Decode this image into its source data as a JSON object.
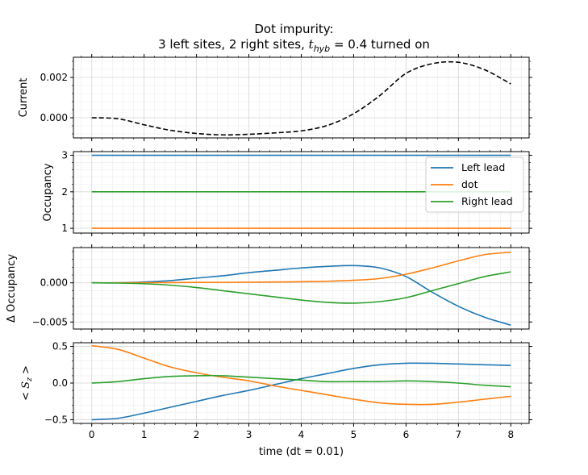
{
  "title_line1": "Dot impurity:",
  "title_line2_prefix": "3 left sites, 2 right sites, ",
  "title_line2_symbol": "t",
  "title_line2_sub": "hyb",
  "title_line2_suffix": " = 0.4 turned on",
  "xlabel": "time (dt = 0.01)",
  "chart_data": [
    {
      "type": "line",
      "panel": "current",
      "ylabel": "Current",
      "ylim": [
        -0.001,
        0.003
      ],
      "xlim": [
        -0.35,
        8.35
      ],
      "yticks": [
        0.0,
        0.002
      ],
      "ytick_labels": [
        "0.000",
        "0.002"
      ],
      "grid": true,
      "series": [
        {
          "color": "#000000",
          "dashed": true,
          "x": [
            0,
            0.5,
            1,
            1.5,
            2,
            2.5,
            3,
            3.5,
            4,
            4.5,
            5,
            5.5,
            6,
            6.5,
            7,
            7.5,
            8
          ],
          "y": [
            0.0,
            -5e-05,
            -0.00035,
            -0.00062,
            -0.00078,
            -0.00085,
            -0.00082,
            -0.00075,
            -0.00065,
            -0.00038,
            0.0002,
            0.0011,
            0.0022,
            0.00268,
            0.00275,
            0.00238,
            0.00168
          ]
        }
      ]
    },
    {
      "type": "line",
      "panel": "occupancy",
      "ylabel": "Occupancy",
      "ylim": [
        0.87,
        3.1
      ],
      "xlim": [
        -0.35,
        8.35
      ],
      "yticks": [
        1,
        2,
        3
      ],
      "ytick_labels": [
        "1",
        "2",
        "3"
      ],
      "grid": true,
      "legend_position": "upper-right",
      "series": [
        {
          "name": "Left lead",
          "color": "#1f77b4",
          "x": [
            0,
            8
          ],
          "y": [
            3,
            3
          ]
        },
        {
          "name": "dot",
          "color": "#ff7f0e",
          "x": [
            0,
            8
          ],
          "y": [
            1,
            1
          ]
        },
        {
          "name": "Right lead",
          "color": "#2ca02c",
          "x": [
            0,
            8
          ],
          "y": [
            2,
            2
          ]
        }
      ]
    },
    {
      "type": "line",
      "panel": "delta_occupancy",
      "ylabel": "Δ Occupancy",
      "ylim": [
        -0.0059,
        0.0045
      ],
      "xlim": [
        -0.35,
        8.35
      ],
      "yticks": [
        0.0,
        -0.005
      ],
      "ytick_labels": [
        "0.000",
        "−0.005"
      ],
      "grid": true,
      "series": [
        {
          "color": "#1f77b4",
          "x": [
            0,
            0.5,
            1,
            1.5,
            2,
            2.5,
            3,
            3.5,
            4,
            4.5,
            5,
            5.5,
            6,
            6.5,
            7,
            7.5,
            8
          ],
          "y": [
            0.0,
            0.0,
            0.0001,
            0.00028,
            0.0006,
            0.0009,
            0.0013,
            0.0016,
            0.0019,
            0.0021,
            0.0022,
            0.0019,
            0.0008,
            -0.0012,
            -0.003,
            -0.0044,
            -0.0054
          ]
        },
        {
          "color": "#ff7f0e",
          "x": [
            0,
            0.5,
            1,
            1.5,
            2,
            2.5,
            3,
            3.5,
            4,
            4.5,
            5,
            5.5,
            6,
            6.5,
            7,
            7.5,
            8
          ],
          "y": [
            0.0,
            0.0,
            2e-05,
            3e-05,
            5e-05,
            6e-05,
            8e-05,
            0.0001,
            0.00014,
            0.0002,
            0.00032,
            0.00055,
            0.0011,
            0.0019,
            0.0028,
            0.0036,
            0.0039
          ]
        },
        {
          "color": "#2ca02c",
          "x": [
            0,
            0.5,
            1,
            1.5,
            2,
            2.5,
            3,
            3.5,
            4,
            4.5,
            5,
            5.5,
            6,
            6.5,
            7,
            7.5,
            8
          ],
          "y": [
            0.0,
            -3e-05,
            -0.00012,
            -0.0003,
            -0.0006,
            -0.001,
            -0.0014,
            -0.0018,
            -0.0022,
            -0.0025,
            -0.0026,
            -0.0024,
            -0.0019,
            -0.001,
            -0.0001,
            0.0008,
            0.0014
          ]
        }
      ]
    },
    {
      "type": "line",
      "panel": "sz",
      "ylabel": "< S_z >",
      "ylim": [
        -0.55,
        0.55
      ],
      "xlim": [
        -0.35,
        8.35
      ],
      "yticks": [
        -0.5,
        0.0,
        0.5
      ],
      "ytick_labels": [
        "−0.5",
        "0.0",
        "0.5"
      ],
      "xticks": [
        0,
        1,
        2,
        3,
        4,
        5,
        6,
        7,
        8
      ],
      "grid": true,
      "series": [
        {
          "color": "#1f77b4",
          "x": [
            0,
            0.5,
            1,
            1.5,
            2,
            2.5,
            3,
            3.5,
            4,
            4.5,
            5,
            5.5,
            6,
            6.5,
            7,
            7.5,
            8
          ],
          "y": [
            -0.5,
            -0.48,
            -0.41,
            -0.33,
            -0.25,
            -0.17,
            -0.1,
            -0.02,
            0.06,
            0.13,
            0.2,
            0.25,
            0.27,
            0.27,
            0.26,
            0.25,
            0.24
          ]
        },
        {
          "color": "#ff7f0e",
          "x": [
            0,
            0.5,
            1,
            1.5,
            2,
            2.5,
            3,
            3.5,
            4,
            4.5,
            5,
            5.5,
            6,
            6.5,
            7,
            7.5,
            8
          ],
          "y": [
            0.51,
            0.46,
            0.34,
            0.22,
            0.14,
            0.08,
            0.03,
            -0.04,
            -0.1,
            -0.16,
            -0.22,
            -0.27,
            -0.29,
            -0.29,
            -0.26,
            -0.22,
            -0.18
          ]
        },
        {
          "color": "#2ca02c",
          "x": [
            0,
            0.5,
            1,
            1.5,
            2,
            2.5,
            3,
            3.5,
            4,
            4.5,
            5,
            5.5,
            6,
            6.5,
            7,
            7.5,
            8
          ],
          "y": [
            0.0,
            0.02,
            0.06,
            0.09,
            0.1,
            0.1,
            0.08,
            0.06,
            0.04,
            0.02,
            0.02,
            0.02,
            0.03,
            0.02,
            0.0,
            -0.03,
            -0.05
          ]
        }
      ]
    }
  ]
}
